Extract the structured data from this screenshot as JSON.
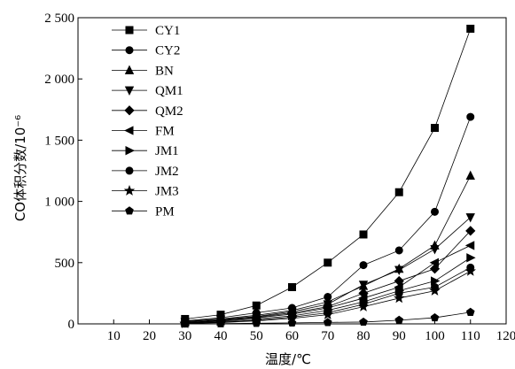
{
  "chart_data": {
    "type": "line",
    "xlabel": "温度/℃",
    "ylabel": "CO体积分数/10⁻⁶",
    "xlim": [
      0,
      120
    ],
    "ylim": [
      0,
      2500
    ],
    "xticks": [
      10,
      20,
      30,
      40,
      50,
      60,
      70,
      80,
      90,
      100,
      110,
      120
    ],
    "yticks": [
      0,
      500,
      1000,
      1500,
      2000,
      2500
    ],
    "xtick_labels": [
      "10",
      "20",
      "30",
      "40",
      "50",
      "60",
      "70",
      "80",
      "90",
      "100",
      "110",
      "120"
    ],
    "ytick_labels": [
      "0",
      "500",
      "1 000",
      "1 500",
      "2 000",
      "2 500"
    ],
    "grid": false,
    "legend_position": "top-left",
    "x": [
      30,
      40,
      50,
      60,
      70,
      80,
      90,
      100,
      110
    ],
    "series": [
      {
        "name": "CY1",
        "marker": "square",
        "values": [
          40,
          75,
          150,
          300,
          500,
          730,
          1075,
          1600,
          2410
        ]
      },
      {
        "name": "CY2",
        "marker": "circle",
        "values": [
          25,
          50,
          90,
          130,
          220,
          480,
          600,
          915,
          1690
        ]
      },
      {
        "name": "BN",
        "marker": "triangle-up",
        "values": [
          20,
          40,
          70,
          110,
          180,
          310,
          450,
          640,
          1210
        ]
      },
      {
        "name": "QM1",
        "marker": "triangle-down",
        "values": [
          15,
          35,
          60,
          100,
          160,
          320,
          440,
          610,
          870
        ]
      },
      {
        "name": "QM2",
        "marker": "diamond",
        "values": [
          10,
          30,
          55,
          90,
          140,
          250,
          350,
          450,
          760
        ]
      },
      {
        "name": "FM",
        "marker": "triangle-left",
        "values": [
          10,
          25,
          50,
          80,
          130,
          210,
          300,
          500,
          640
        ]
      },
      {
        "name": "JM1",
        "marker": "triangle-right",
        "values": [
          8,
          20,
          40,
          65,
          110,
          180,
          270,
          350,
          540
        ]
      },
      {
        "name": "JM2",
        "marker": "circle",
        "values": [
          5,
          15,
          30,
          55,
          90,
          160,
          250,
          300,
          460
        ]
      },
      {
        "name": "JM3",
        "marker": "star",
        "values": [
          3,
          10,
          25,
          45,
          75,
          140,
          210,
          270,
          430
        ]
      },
      {
        "name": "PM",
        "marker": "pentagon",
        "values": [
          0,
          2,
          5,
          8,
          12,
          15,
          30,
          50,
          95
        ]
      }
    ]
  }
}
